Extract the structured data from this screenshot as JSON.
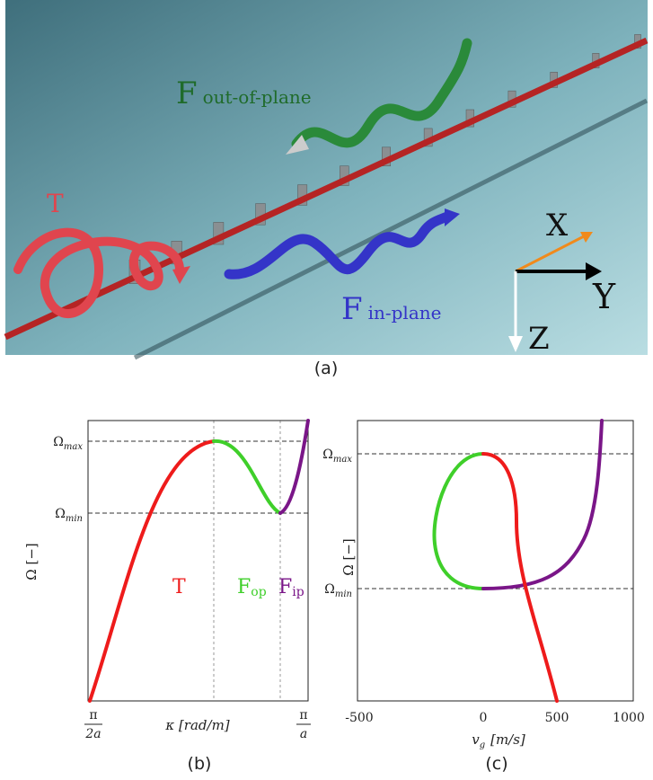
{
  "panel_a": {
    "f_out_symbol": "F",
    "f_out_label": "out-of-plane",
    "t_label": "T",
    "f_in_symbol": "F",
    "f_in_label": "in-plane",
    "x_label": "X",
    "y_label": "Y",
    "z_label": "Z",
    "caption": "(a)"
  },
  "panel_b": {
    "omega_max": {
      "symbol": "Ω",
      "subscript": "max"
    },
    "omega_min": {
      "symbol": "Ω",
      "subscript": "min"
    },
    "y_axis_label": "Ω [−]",
    "x_left": {
      "numerator": "π",
      "denominator": "2a"
    },
    "x_axis_label": "κ [rad/m]",
    "x_right": {
      "numerator": "π",
      "denominator": "a"
    },
    "t_label": "T",
    "f_op": {
      "symbol": "F",
      "subscript": "op"
    },
    "f_ip": {
      "symbol": "F",
      "subscript": "ip"
    },
    "caption": "(b)"
  },
  "panel_c": {
    "omega_max": {
      "symbol": "Ω",
      "subscript": "max"
    },
    "omega_min": {
      "symbol": "Ω",
      "subscript": "min"
    },
    "y_axis_label": "Ω [−]",
    "x_ticks": [
      "-500",
      "0",
      "500",
      "1000"
    ],
    "x_axis_label": {
      "symbol": "v",
      "subscript": "g",
      "unit": "[m/s]"
    },
    "caption": "(c)"
  }
}
